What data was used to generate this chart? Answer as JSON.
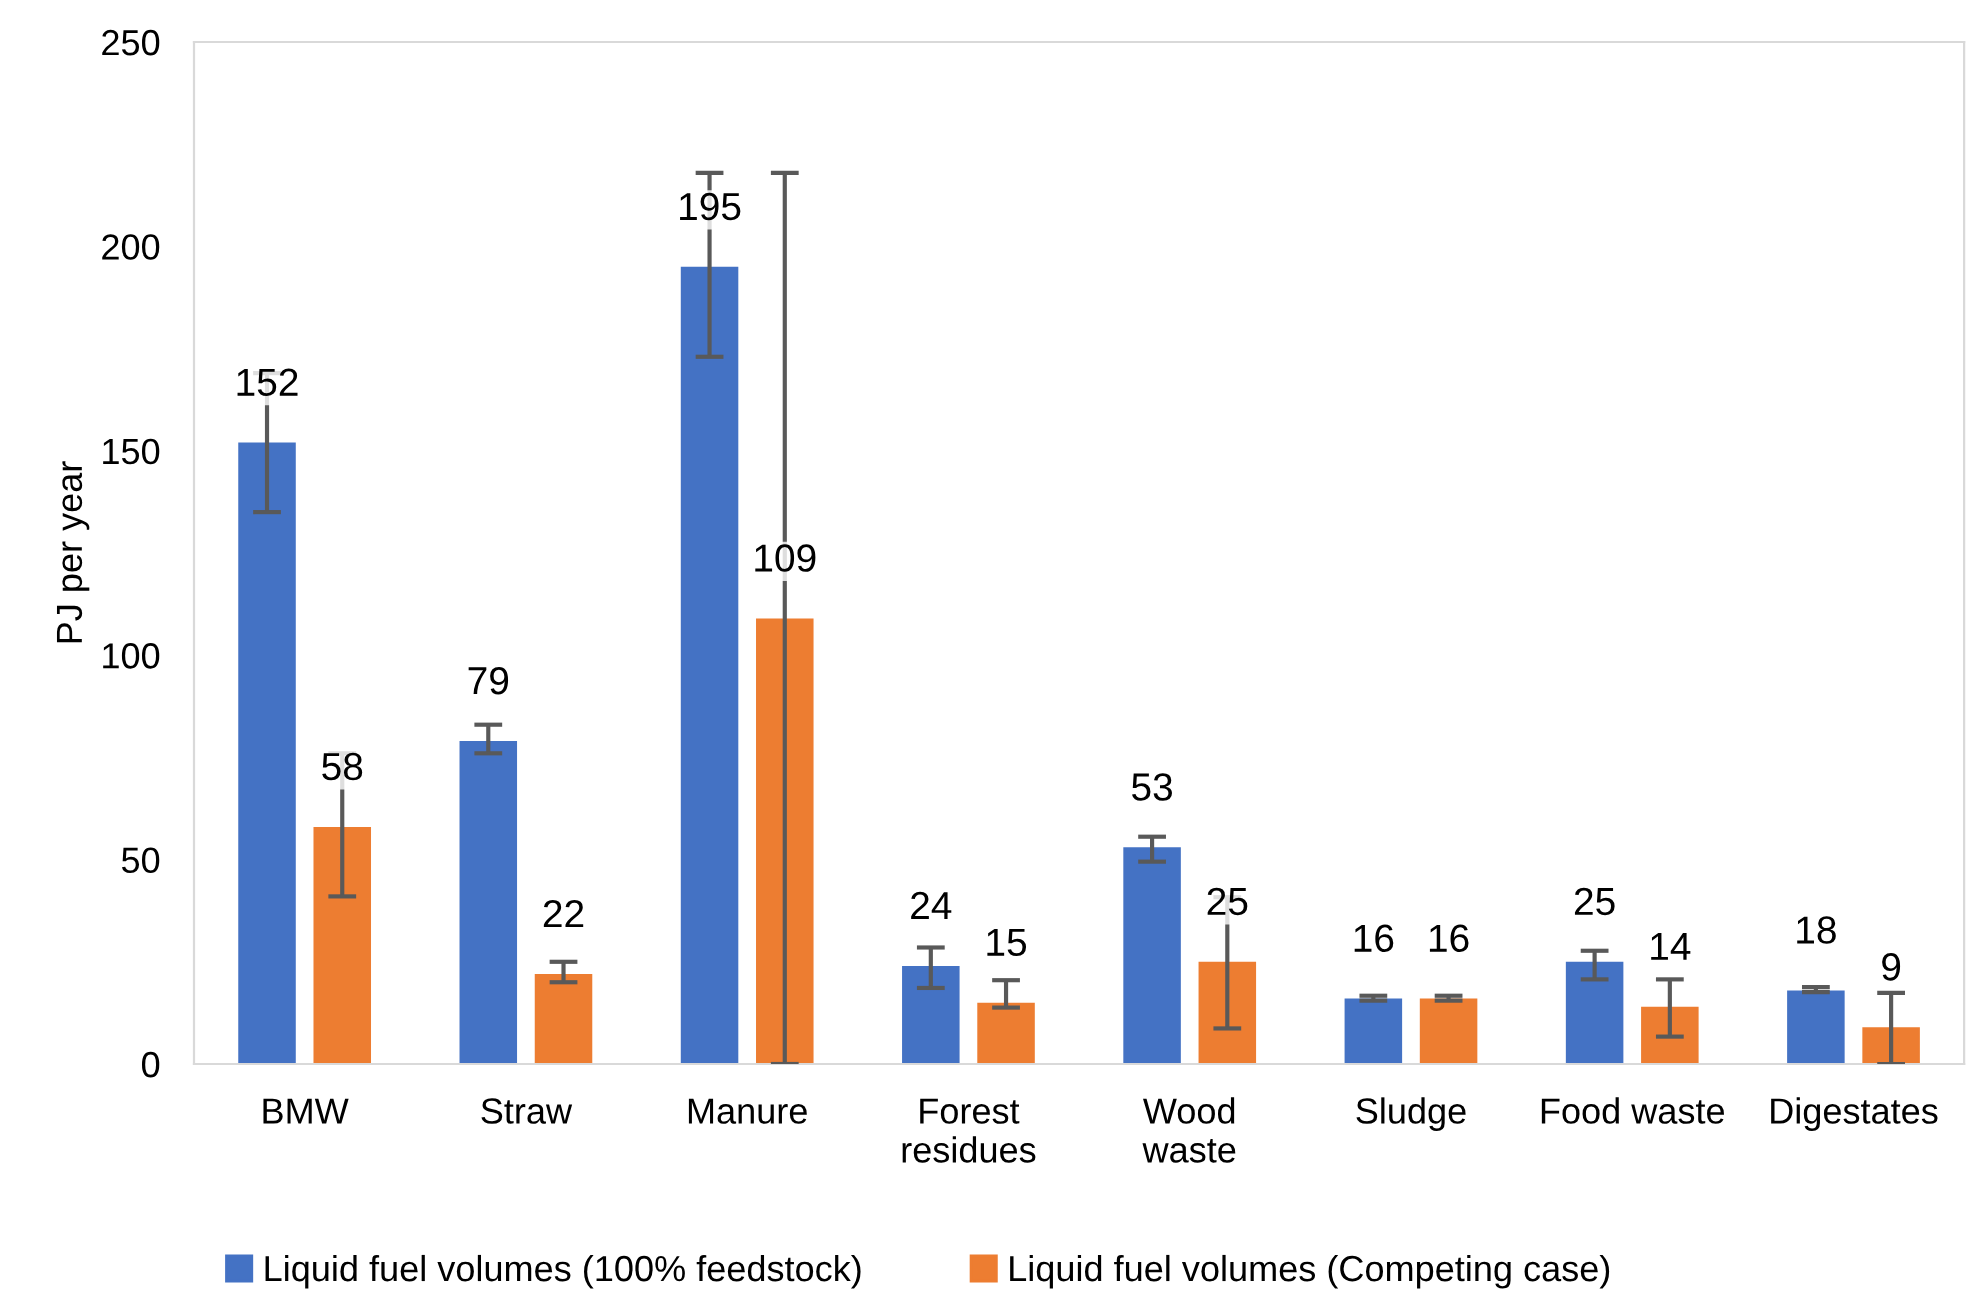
{
  "chart_data": {
    "type": "bar",
    "ylabel": "PJ per year",
    "categories": [
      "BMW",
      "Straw",
      "Manure",
      "Forest\nresidues",
      "Wood\nwaste",
      "Sludge",
      "Food waste",
      "Digestates"
    ],
    "series": [
      {
        "name": "Liquid fuel volumes (100% feedstock)",
        "color": "#4472c4",
        "values": [
          152,
          79,
          195,
          24,
          53,
          16,
          25,
          18
        ],
        "errors": [
          [
            135,
            169
          ],
          [
            76,
            83
          ],
          [
            173,
            218
          ],
          [
            18.6,
            28.5
          ],
          [
            49.5,
            55.6
          ],
          [
            15.5,
            16.7
          ],
          [
            20.7,
            27.7
          ],
          [
            17.6,
            18.8
          ]
        ]
      },
      {
        "name": "Liquid fuel volumes (Competing case)",
        "color": "#ed7d31",
        "values": [
          58,
          22,
          109,
          15,
          25,
          16,
          14,
          9
        ],
        "errors": [
          [
            41,
            76
          ],
          [
            20,
            25
          ],
          [
            0,
            218
          ],
          [
            13.8,
            20.5
          ],
          [
            8.7,
            40.8
          ],
          [
            15.5,
            16.7
          ],
          [
            6.7,
            20.7
          ],
          [
            0,
            17.4
          ]
        ]
      }
    ],
    "ylim": [
      0,
      250
    ],
    "yticks": [
      0,
      50,
      100,
      150,
      200,
      250
    ],
    "data_labels": true,
    "grid": false,
    "legend": "bottom"
  }
}
